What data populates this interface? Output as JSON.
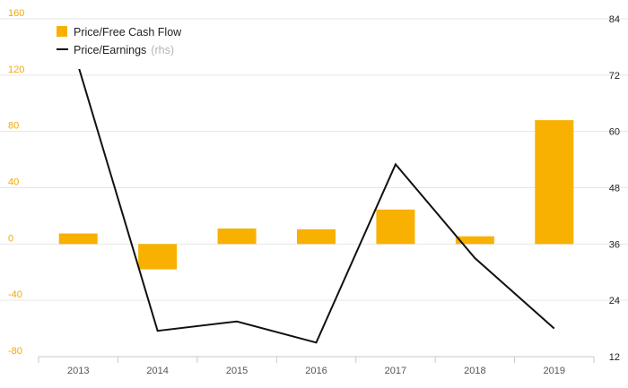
{
  "chart_data": {
    "type": "bar+line",
    "categories": [
      "2013",
      "2014",
      "2015",
      "2016",
      "2017",
      "2018",
      "2019"
    ],
    "series": [
      {
        "name": "Price/Free Cash Flow",
        "type": "bar",
        "axis": "left",
        "color": "#f8b100",
        "values": [
          7.5,
          -18,
          11,
          10.5,
          24.5,
          5.5,
          88
        ]
      },
      {
        "name": "Price/Earnings",
        "type": "line",
        "axis": "right",
        "color": "#111111",
        "values": [
          74,
          17.5,
          19.5,
          15,
          53,
          33,
          18
        ]
      }
    ],
    "legend": {
      "position": "top-left",
      "items": [
        {
          "label": "Price/Free Cash Flow",
          "suffix": "",
          "marker": "square"
        },
        {
          "label": "Price/Earnings",
          "suffix": "(rhs)",
          "marker": "line"
        }
      ]
    },
    "y_left": {
      "range": [
        -80,
        160
      ],
      "ticks": [
        160,
        120,
        80,
        40,
        0,
        -40,
        -80
      ],
      "tick_labels": [
        "160",
        "120",
        "80",
        "40",
        "0",
        "-40",
        "-80"
      ],
      "color": "#f2a900"
    },
    "y_right": {
      "range": [
        12,
        84
      ],
      "ticks": [
        84,
        72,
        60,
        48,
        36,
        24,
        12
      ],
      "tick_labels": [
        "84",
        "72",
        "60",
        "48",
        "36",
        "24",
        "12"
      ],
      "color": "#222222"
    },
    "grid": true,
    "title": "",
    "xlabel": "",
    "ylabel": ""
  }
}
